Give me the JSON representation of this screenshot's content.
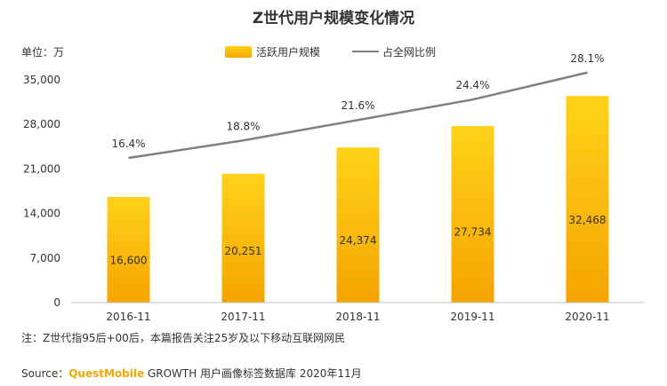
{
  "chart_data": {
    "type": "bar",
    "title": "Z世代用户规模变化情况",
    "unit_label": "单位：万",
    "categories": [
      "2016-11",
      "2017-11",
      "2018-11",
      "2019-11",
      "2020-11"
    ],
    "series": [
      {
        "name": "活跃用户规模",
        "type": "bar",
        "axis": "left",
        "values": [
          16600,
          20251,
          24374,
          27734,
          32468
        ],
        "labels": [
          "16,600",
          "20,251",
          "24,374",
          "27,734",
          "32,468"
        ]
      },
      {
        "name": "占全网比例",
        "type": "line",
        "axis": "right",
        "values": [
          16.4,
          18.8,
          21.6,
          24.4,
          28.1
        ],
        "labels": [
          "16.4%",
          "18.8%",
          "21.6%",
          "24.4%",
          "28.1%"
        ]
      }
    ],
    "yticks": [
      "0",
      "7,000",
      "14,000",
      "21,000",
      "28,000",
      "35,000"
    ],
    "ylim": [
      0,
      35000
    ],
    "legend_position": "top",
    "colors": {
      "bar_top": "#ffd21a",
      "bar_bottom": "#f5a400",
      "line": "#808080",
      "axis": "#bfbfbf"
    }
  },
  "footer": {
    "note": "注：Z世代指95后+00后，本篇报告关注25岁及以下移动互联网网民",
    "source_prefix": "Source：",
    "source_brand": "QuestMobile",
    "source_rest": " GROWTH 用户画像标签数据库 2020年11月"
  }
}
